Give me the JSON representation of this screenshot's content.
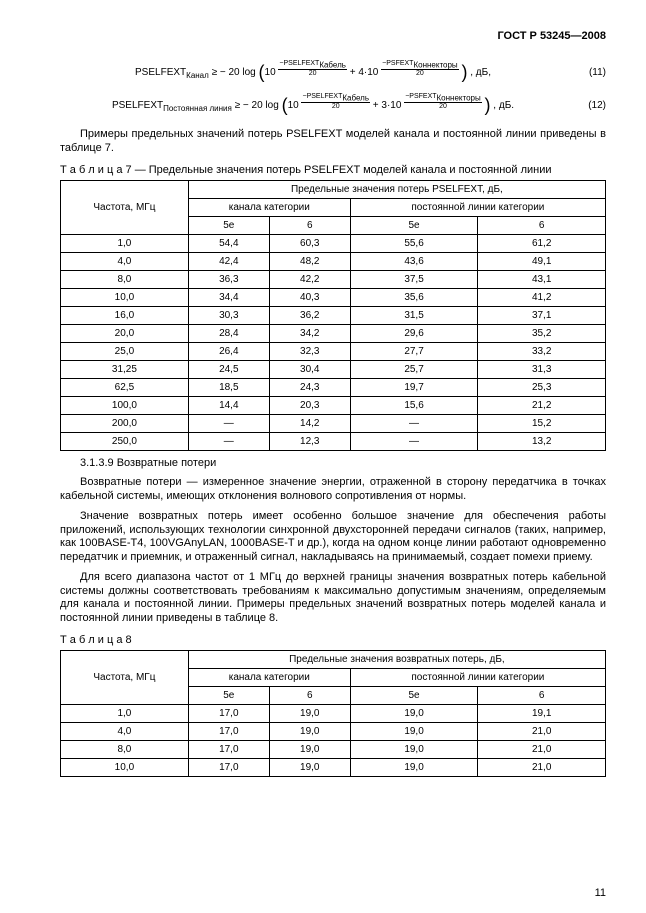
{
  "header": "ГОСТ Р 53245—2008",
  "formula1": {
    "lhs": "PSELFEXT",
    "lhs_sub": "Канал",
    "op": " ≥ − 20 log",
    "term1_num": "PSELFEXT",
    "term1_sub": "Кабель",
    "term1_den": "20",
    "plus": " + 4·10 ",
    "term2_num": "PSFEXT",
    "term2_sub": "Коннекторы",
    "term2_den": "20",
    "tail": ", дБ,",
    "num": "(11)"
  },
  "formula2": {
    "lhs": "PSELFEXT",
    "lhs_sub": "Постоянная линия",
    "op": " ≥ − 20 log",
    "term1_num": "PSELFEXT",
    "term1_sub": "Кабель",
    "term1_den": "20",
    "plus": " + 3·10 ",
    "term2_num": "PSFEXT",
    "term2_sub": "Коннекторы",
    "term2_den": "20",
    "tail": ", дБ.",
    "num": "(12)"
  },
  "intro1": "Примеры предельных значений потерь PSELFEXT моделей канала и постоянной линии приведены в таблице 7.",
  "table7": {
    "caption_label": "Т а б л и ц а",
    "caption_num": " 7 — ",
    "caption_text": "Предельные значения потерь PSELFEXT моделей канала и постоянной линии",
    "col_freq": "Частота, МГц",
    "head_main": "Предельные значения потерь PSELFEXT, дБ,",
    "head_ch": "канала категории",
    "head_pl": "постоянной линии категории",
    "sub_5e": "5е",
    "sub_6": "6",
    "rows": [
      [
        "1,0",
        "54,4",
        "60,3",
        "55,6",
        "61,2"
      ],
      [
        "4,0",
        "42,4",
        "48,2",
        "43,6",
        "49,1"
      ],
      [
        "8,0",
        "36,3",
        "42,2",
        "37,5",
        "43,1"
      ],
      [
        "10,0",
        "34,4",
        "40,3",
        "35,6",
        "41,2"
      ],
      [
        "16,0",
        "30,3",
        "36,2",
        "31,5",
        "37,1"
      ],
      [
        "20,0",
        "28,4",
        "34,2",
        "29,6",
        "35,2"
      ],
      [
        "25,0",
        "26,4",
        "32,3",
        "27,7",
        "33,2"
      ],
      [
        "31,25",
        "24,5",
        "30,4",
        "25,7",
        "31,3"
      ],
      [
        "62,5",
        "18,5",
        "24,3",
        "19,7",
        "25,3"
      ],
      [
        "100,0",
        "14,4",
        "20,3",
        "15,6",
        "21,2"
      ],
      [
        "200,0",
        "—",
        "14,2",
        "—",
        "15,2"
      ],
      [
        "250,0",
        "—",
        "12,3",
        "—",
        "13,2"
      ]
    ]
  },
  "section_num": "3.1.3.9",
  "section_title": " Возвратные потери",
  "para1": "Возвратные потери — измеренное значение энергии, отраженной в сторону передатчика в точках кабельной системы, имеющих отклонения волнового сопротивления от нормы.",
  "para2": "Значение возвратных потерь имеет особенно большое значение для обеспечения работы приложений, использующих технологии синхронной двухсторонней передачи сигналов (таких, например, как 100BASE-T4, 100VGAnyLAN, 1000BASE-T и др.), когда на одном конце линии работают одновременно передатчик и приемник, и отраженный сигнал, накладываясь на принимаемый, создает помехи приему.",
  "para3": "Для всего диапазона частот от 1 МГц до верхней границы значения возвратных потерь кабельной системы должны соответствовать требованиям к максимально допустимым значениям, определяемым для канала и постоянной линии. Примеры предельных значений возвратных потерь моделей канала и постоянной линии приведены в таблице 8.",
  "table8": {
    "caption_label": "Т а б л и ц а",
    "caption_num": " 8",
    "col_freq": "Частота, МГц",
    "head_main": "Предельные значения возвратных потерь, дБ,",
    "head_ch": "канала категории",
    "head_pl": "постоянной линии категории",
    "sub_5e": "5е",
    "sub_6": "6",
    "rows": [
      [
        "1,0",
        "17,0",
        "19,0",
        "19,0",
        "19,1"
      ],
      [
        "4,0",
        "17,0",
        "19,0",
        "19,0",
        "21,0"
      ],
      [
        "8,0",
        "17,0",
        "19,0",
        "19,0",
        "21,0"
      ],
      [
        "10,0",
        "17,0",
        "19,0",
        "19,0",
        "21,0"
      ]
    ]
  },
  "page_number": "11"
}
